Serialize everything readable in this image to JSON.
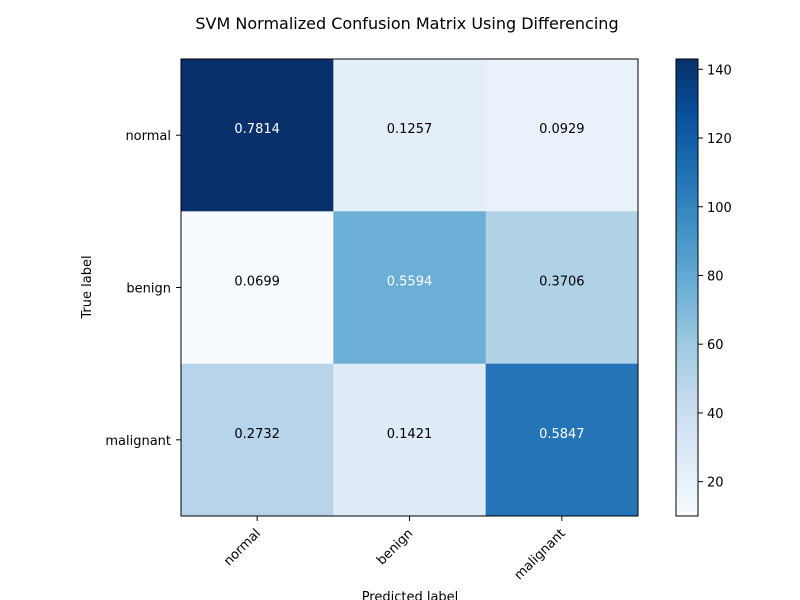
{
  "chart_data": {
    "type": "heatmap",
    "title": "SVM Normalized Confusion Matrix Using Differencing",
    "xlabel": "Predicted label",
    "ylabel": "True label",
    "x_categories": [
      "normal",
      "benign",
      "malignant"
    ],
    "y_categories": [
      "normal",
      "benign",
      "malignant"
    ],
    "values": [
      [
        0.7814,
        0.1257,
        0.0929
      ],
      [
        0.0699,
        0.5594,
        0.3706
      ],
      [
        0.2732,
        0.1421,
        0.5847
      ]
    ],
    "value_labels": [
      [
        "0.7814",
        "0.1257",
        "0.0929"
      ],
      [
        "0.0699",
        "0.5594",
        "0.3706"
      ],
      [
        "0.2732",
        "0.1421",
        "0.5847"
      ]
    ],
    "colormap": "Blues",
    "colorbar": {
      "range": [
        10,
        143
      ],
      "ticks": [
        20,
        40,
        60,
        80,
        100,
        120,
        140
      ],
      "tick_labels": [
        "20",
        "40",
        "60",
        "80",
        "100",
        "120",
        "140"
      ]
    },
    "colors": {
      "cells": [
        [
          "#08306b",
          "#e3eef9",
          "#e9f2fb"
        ],
        [
          "#f7fbff",
          "#6baed6",
          "#b0d2e7"
        ],
        [
          "#b7d4ea",
          "#dfebf7",
          "#2474b7"
        ]
      ],
      "text_light": "#ffffff",
      "text_dark": "#000000"
    },
    "grid": false
  }
}
